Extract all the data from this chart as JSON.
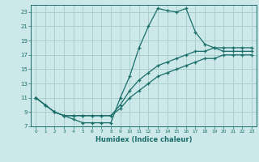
{
  "xlabel": "Humidex (Indice chaleur)",
  "bg_color": "#cce8e8",
  "grid_color": "#aacece",
  "line_color": "#1a6e6a",
  "xlim": [
    -0.5,
    23.5
  ],
  "ylim": [
    7,
    24
  ],
  "xticks": [
    0,
    1,
    2,
    3,
    4,
    5,
    6,
    7,
    8,
    9,
    10,
    11,
    12,
    13,
    14,
    15,
    16,
    17,
    18,
    19,
    20,
    21,
    22,
    23
  ],
  "yticks": [
    7,
    9,
    11,
    13,
    15,
    17,
    19,
    21,
    23
  ],
  "curve1_x": [
    0,
    1,
    2,
    3,
    4,
    5,
    6,
    7,
    8,
    9,
    10,
    11,
    12,
    13,
    14,
    15,
    16,
    17,
    18,
    19,
    20,
    21,
    22,
    23
  ],
  "curve1_y": [
    11,
    10,
    9,
    8.5,
    8,
    7.5,
    7.5,
    7.5,
    7.5,
    11,
    14,
    18,
    21,
    23.5,
    23.2,
    23,
    23.5,
    20.2,
    18.5,
    18,
    17.5,
    17.5,
    17.5,
    17.5
  ],
  "curve2_x": [
    0,
    1,
    2,
    3,
    4,
    5,
    6,
    7,
    8,
    9,
    10,
    11,
    12,
    13,
    14,
    15,
    16,
    17,
    18,
    19,
    20,
    21,
    22,
    23
  ],
  "curve2_y": [
    11,
    10,
    9,
    8.5,
    8.5,
    8.5,
    8.5,
    8.5,
    8.5,
    10,
    12,
    13.5,
    14.5,
    15.5,
    16,
    16.5,
    17,
    17.5,
    17.5,
    18,
    18,
    18,
    18,
    18
  ],
  "curve3_x": [
    0,
    1,
    2,
    3,
    4,
    5,
    6,
    7,
    8,
    9,
    10,
    11,
    12,
    13,
    14,
    15,
    16,
    17,
    18,
    19,
    20,
    21,
    22,
    23
  ],
  "curve3_y": [
    11,
    10,
    9,
    8.5,
    8.5,
    8.5,
    8.5,
    8.5,
    8.5,
    9.5,
    11,
    12,
    13,
    14,
    14.5,
    15,
    15.5,
    16,
    16.5,
    16.5,
    17,
    17,
    17,
    17
  ]
}
